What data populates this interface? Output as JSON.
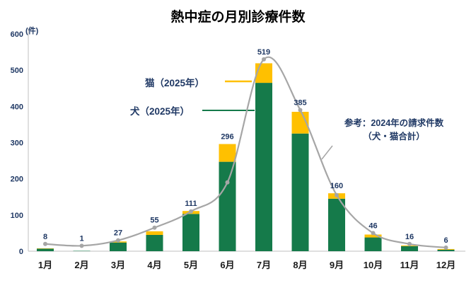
{
  "title": "熱中症の月別診療件数",
  "y_axis_unit": "(件)",
  "annotations": {
    "cat_label": "猫（2025年）",
    "dog_label": "犬（2025年）",
    "ref_label_line1": "参考：2024年の請求件数",
    "ref_label_line2": "（犬・猫合計）"
  },
  "colors": {
    "dog_green": "#157a4a",
    "cat_yellow": "#ffc000",
    "ref_gray": "#a6a6a6",
    "label_navy": "#1f3864",
    "axis_gray": "#bfbfbf"
  },
  "chart_data": {
    "type": "bar",
    "subtype": "stacked_bars_with_reference_line",
    "title": "熱中症の月別診療件数",
    "y_unit": "(件)",
    "categories": [
      "1月",
      "2月",
      "3月",
      "4月",
      "5月",
      "6月",
      "7月",
      "8月",
      "9月",
      "10月",
      "11月",
      "12月"
    ],
    "series": [
      {
        "name": "犬（2025年）",
        "type": "bar",
        "stack": "2025",
        "color": "#157a4a",
        "values": [
          7,
          1,
          24,
          45,
          103,
          247,
          465,
          325,
          145,
          38,
          14,
          4
        ]
      },
      {
        "name": "猫（2025年）",
        "type": "bar",
        "stack": "2025",
        "color": "#ffc000",
        "values": [
          1,
          0,
          3,
          10,
          8,
          49,
          54,
          60,
          15,
          8,
          2,
          2
        ]
      },
      {
        "name": "参考：2024年の請求件数（犬・猫合計）",
        "type": "line",
        "color": "#a6a6a6",
        "values": [
          20,
          15,
          30,
          65,
          110,
          190,
          530,
          390,
          155,
          50,
          20,
          10
        ]
      }
    ],
    "stack_total_labels": [
      8,
      1,
      27,
      55,
      111,
      296,
      519,
      385,
      160,
      46,
      16,
      6
    ],
    "ylim": [
      0,
      600
    ],
    "y_ticks": [
      0,
      100,
      200,
      300,
      400,
      500,
      600
    ],
    "grid": false,
    "legend_position": "inline-annotations"
  }
}
